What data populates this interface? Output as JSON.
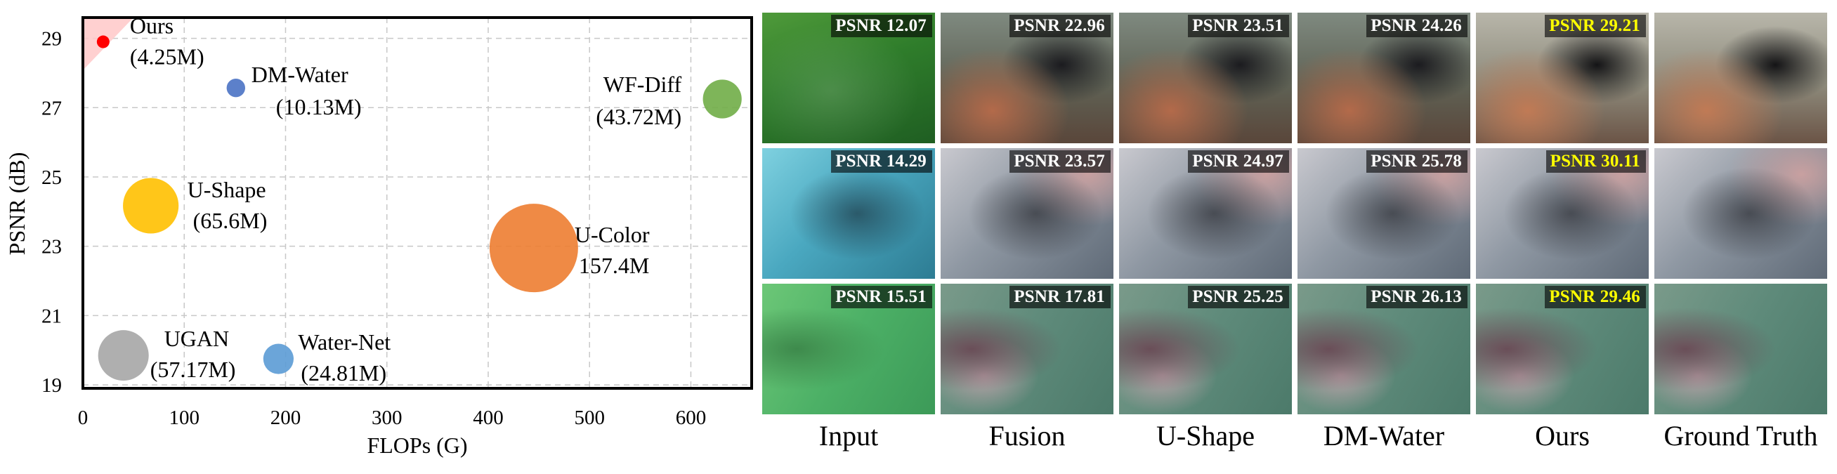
{
  "chart_data": {
    "type": "scatter",
    "xlabel": "FLOPs (G)",
    "ylabel": "PSNR (dB)",
    "xlim": [
      0,
      660
    ],
    "ylim": [
      18.9,
      29.6
    ],
    "xticks": [
      0,
      100,
      200,
      300,
      400,
      500,
      600
    ],
    "yticks": [
      19,
      21,
      23,
      25,
      27,
      29
    ],
    "grid": true,
    "points": [
      {
        "name": "Ours",
        "params": "(4.25M)",
        "x": 20,
        "y": 28.9,
        "size": 1.5,
        "color": "#ff0000"
      },
      {
        "name": "DM-Water",
        "params": "(10.13M)",
        "x": 151,
        "y": 27.57,
        "size": 2.2,
        "color": "#4a72c4"
      },
      {
        "name": "WF-Diff",
        "params": "(43.72M)",
        "x": 631,
        "y": 27.25,
        "size": 4.6,
        "color": "#70ad47"
      },
      {
        "name": "U-Shape",
        "params": "(65.6M)",
        "x": 67,
        "y": 24.17,
        "size": 6.6,
        "color": "#ffc000"
      },
      {
        "name": "U-Color",
        "params": "157.4M",
        "x": 445,
        "y": 22.95,
        "size": 10.5,
        "color": "#ed7d31"
      },
      {
        "name": "UGAN",
        "params": "(57.17M)",
        "x": 40,
        "y": 19.85,
        "size": 6.0,
        "color": "#a6a6a6"
      },
      {
        "name": "Water-Net",
        "params": "(24.81M)",
        "x": 193,
        "y": 19.75,
        "size": 3.6,
        "color": "#5b9bd5"
      }
    ]
  },
  "comparison": {
    "columns": [
      "Input",
      "Fusion",
      "U-Shape",
      "DM-Water",
      "Ours",
      "Ground Truth"
    ],
    "rows": [
      {
        "labels": [
          "PSNR 12.07",
          "PSNR 22.96",
          "PSNR 23.51",
          "PSNR 24.26",
          "PSNR 29.21",
          ""
        ]
      },
      {
        "labels": [
          "PSNR 14.29",
          "PSNR 23.57",
          "PSNR 24.97",
          "PSNR 25.78",
          "PSNR 30.11",
          ""
        ]
      },
      {
        "labels": [
          "PSNR 15.51",
          "PSNR 17.81",
          "PSNR 25.25",
          "PSNR 26.13",
          "PSNR 29.46",
          ""
        ]
      }
    ]
  }
}
